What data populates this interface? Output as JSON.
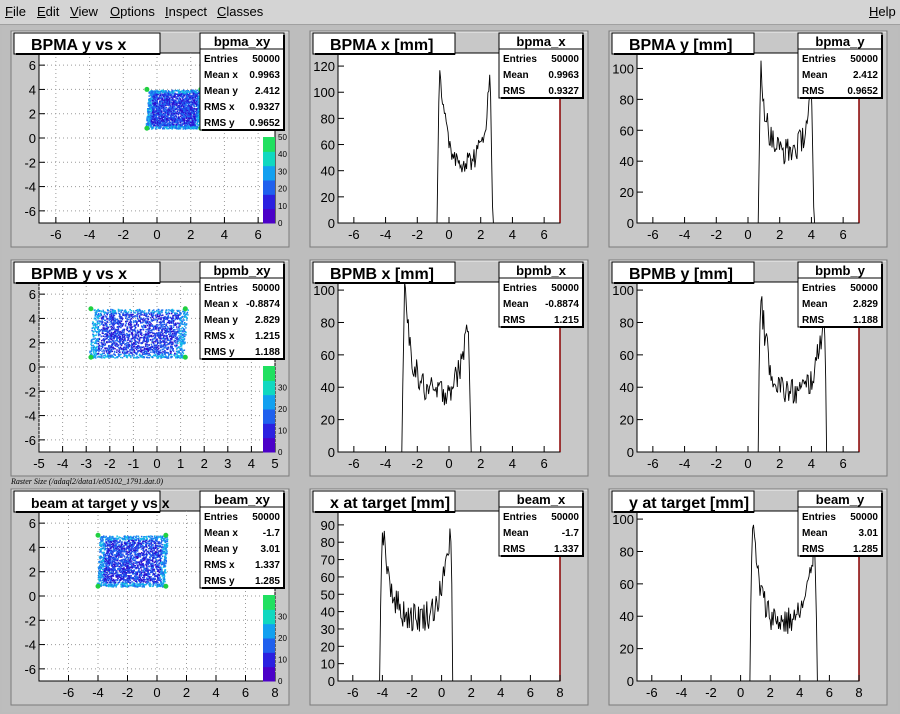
{
  "menu": {
    "items": [
      "File",
      "Edit",
      "View",
      "Options",
      "Inspect",
      "Classes"
    ],
    "help": "Help"
  },
  "canvas_label": "Raster Size (/adaql2/data1/e05102_1791.dat.0)",
  "colors": {
    "background": "#bdbdbd",
    "pad": "#c8c8c8",
    "frame": "#ffffff",
    "axis_right": "#8b0000"
  },
  "chart_data": [
    {
      "id": "bpma_xy",
      "type": "heatmap",
      "title": "BPMA y vs x",
      "stats_title": "bpma_xy",
      "stats": [
        [
          "Entries",
          "50000"
        ],
        [
          "Mean x",
          "0.9963"
        ],
        [
          "Mean y",
          "2.412"
        ],
        [
          "RMS x",
          "0.9327"
        ],
        [
          "RMS y",
          "0.9652"
        ]
      ],
      "xlim": [
        -7,
        7
      ],
      "ylim": [
        -7,
        7
      ],
      "xticks": [
        -6,
        -4,
        -2,
        0,
        2,
        4,
        6
      ],
      "yticks": [
        -6,
        -4,
        -2,
        0,
        2,
        4,
        6
      ],
      "region": {
        "x": [
          -0.6,
          2.6
        ],
        "y": [
          0.8,
          4.0
        ],
        "skew": 0.1
      },
      "z_ticks": [
        "0",
        "10",
        "20",
        "30",
        "40",
        "50"
      ],
      "grid": true
    },
    {
      "id": "bpma_x",
      "type": "line",
      "title": "BPMA x [mm]",
      "stats_title": "bpma_x",
      "stats": [
        [
          "Entries",
          "50000"
        ],
        [
          "Mean",
          "0.9963"
        ],
        [
          "RMS",
          "0.9327"
        ]
      ],
      "xlim": [
        -7,
        7
      ],
      "ylim": [
        0,
        130
      ],
      "xticks": [
        -6,
        -4,
        -2,
        0,
        2,
        4,
        6
      ],
      "yticks": [
        0,
        20,
        40,
        60,
        80,
        100,
        120
      ],
      "profile": {
        "edge_lo": -0.6,
        "edge_hi": 2.6,
        "peak_lo": 125,
        "peak_hi": 115,
        "floor": 45
      }
    },
    {
      "id": "bpma_y",
      "type": "line",
      "title": "BPMA y [mm]",
      "stats_title": "bpma_y",
      "stats": [
        [
          "Entries",
          "50000"
        ],
        [
          "Mean",
          "2.412"
        ],
        [
          "RMS",
          "0.9652"
        ]
      ],
      "xlim": [
        -7,
        7
      ],
      "ylim": [
        0,
        110
      ],
      "xticks": [
        -6,
        -4,
        -2,
        0,
        2,
        4,
        6
      ],
      "yticks": [
        0,
        20,
        40,
        60,
        80,
        100
      ],
      "profile": {
        "edge_lo": 0.8,
        "edge_hi": 4.0,
        "peak_lo": 102,
        "peak_hi": 90,
        "floor": 45
      }
    },
    {
      "id": "bpmb_xy",
      "type": "heatmap",
      "title": "BPMB y vs x",
      "stats_title": "bpmb_xy",
      "stats": [
        [
          "Entries",
          "50000"
        ],
        [
          "Mean x",
          "-0.8874"
        ],
        [
          "Mean y",
          "2.829"
        ],
        [
          "RMS x",
          "1.215"
        ],
        [
          "RMS y",
          "1.188"
        ]
      ],
      "xlim": [
        -5,
        5
      ],
      "ylim": [
        -7,
        7
      ],
      "xticks": [
        -5,
        -4,
        -3,
        -2,
        -1,
        0,
        1,
        2,
        3,
        4,
        5
      ],
      "yticks": [
        -6,
        -4,
        -2,
        0,
        2,
        4,
        6
      ],
      "region": {
        "x": [
          -2.8,
          1.2
        ],
        "y": [
          0.8,
          4.8
        ],
        "skew": 0.1
      },
      "z_ticks": [
        "0",
        "10",
        "20",
        "30"
      ],
      "grid": true
    },
    {
      "id": "bpmb_x",
      "type": "line",
      "title": "BPMB x [mm]",
      "stats_title": "bpmb_x",
      "stats": [
        [
          "Entries",
          "50000"
        ],
        [
          "Mean",
          "-0.8874"
        ],
        [
          "RMS",
          "1.215"
        ]
      ],
      "xlim": [
        -7,
        7
      ],
      "ylim": [
        0,
        105
      ],
      "xticks": [
        -6,
        -4,
        -2,
        0,
        2,
        4,
        6
      ],
      "yticks": [
        0,
        20,
        40,
        60,
        80,
        100
      ],
      "profile": {
        "edge_lo": -2.8,
        "edge_hi": 1.2,
        "peak_lo": 100,
        "peak_hi": 85,
        "floor": 35
      }
    },
    {
      "id": "bpmb_y",
      "type": "line",
      "title": "BPMB y [mm]",
      "stats_title": "bpmb_y",
      "stats": [
        [
          "Entries",
          "50000"
        ],
        [
          "Mean",
          "2.829"
        ],
        [
          "RMS",
          "1.188"
        ]
      ],
      "xlim": [
        -7,
        7
      ],
      "ylim": [
        0,
        105
      ],
      "xticks": [
        -6,
        -4,
        -2,
        0,
        2,
        4,
        6
      ],
      "yticks": [
        0,
        20,
        40,
        60,
        80,
        100
      ],
      "profile": {
        "edge_lo": 0.8,
        "edge_hi": 4.8,
        "peak_lo": 100,
        "peak_hi": 90,
        "floor": 35
      }
    },
    {
      "id": "beam_xy",
      "type": "heatmap",
      "title": "beam at target y vs x",
      "stats_title": "beam_xy",
      "stats": [
        [
          "Entries",
          "50000"
        ],
        [
          "Mean x",
          "-1.7"
        ],
        [
          "Mean y",
          "3.01"
        ],
        [
          "RMS x",
          "1.337"
        ],
        [
          "RMS y",
          "1.285"
        ]
      ],
      "xlim": [
        -8,
        8
      ],
      "ylim": [
        -7,
        7
      ],
      "xticks": [
        -6,
        -4,
        -2,
        0,
        2,
        4,
        6,
        8
      ],
      "yticks": [
        -6,
        -4,
        -2,
        0,
        2,
        4,
        6
      ],
      "region": {
        "x": [
          -4.0,
          0.6
        ],
        "y": [
          0.8,
          5.0
        ],
        "skew": 0.1
      },
      "z_ticks": [
        "0",
        "10",
        "20",
        "30"
      ],
      "grid": true
    },
    {
      "id": "beam_x",
      "type": "line",
      "title": "x at target [mm]",
      "stats_title": "beam_x",
      "stats": [
        [
          "Entries",
          "50000"
        ],
        [
          "Mean",
          "-1.7"
        ],
        [
          "RMS",
          "1.337"
        ]
      ],
      "xlim": [
        -7,
        8
      ],
      "ylim": [
        0,
        98
      ],
      "xticks": [
        -6,
        -4,
        -2,
        0,
        2,
        4,
        6,
        8
      ],
      "yticks": [
        0,
        10,
        20,
        30,
        40,
        50,
        60,
        70,
        80,
        90
      ],
      "profile": {
        "edge_lo": -4.0,
        "edge_hi": 0.6,
        "peak_lo": 93,
        "peak_hi": 90,
        "floor": 35
      }
    },
    {
      "id": "beam_y",
      "type": "line",
      "title": "y at target [mm]",
      "stats_title": "beam_y",
      "stats": [
        [
          "Entries",
          "50000"
        ],
        [
          "Mean",
          "3.01"
        ],
        [
          "RMS",
          "1.285"
        ]
      ],
      "xlim": [
        -7,
        8
      ],
      "ylim": [
        0,
        105
      ],
      "xticks": [
        -6,
        -4,
        -2,
        0,
        2,
        4,
        6,
        8
      ],
      "yticks": [
        0,
        20,
        40,
        60,
        80,
        100
      ],
      "profile": {
        "edge_lo": 0.8,
        "edge_hi": 5.0,
        "peak_lo": 100,
        "peak_hi": 90,
        "floor": 35
      }
    }
  ]
}
